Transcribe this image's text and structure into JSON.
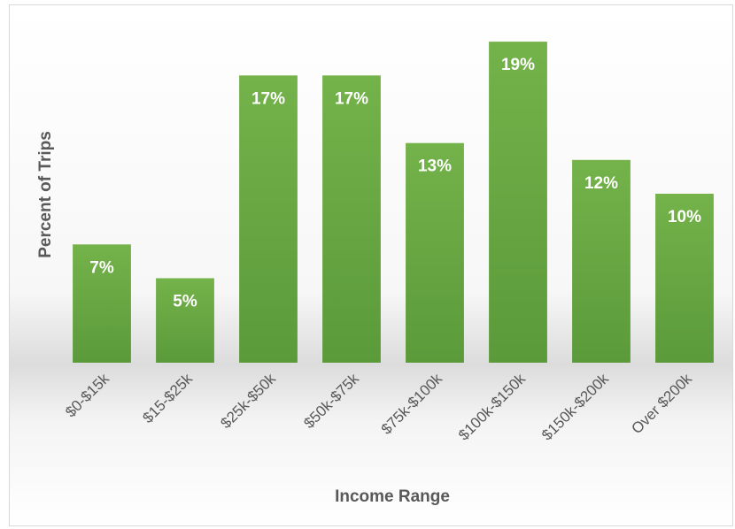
{
  "chart_data": {
    "type": "bar",
    "x_label": "Income Range",
    "y_label": "Percent of Trips",
    "categories": [
      "$0-$15k",
      "$15-$25k",
      "$25k-$50k",
      "$50k-$75k",
      "$75k-$100k",
      "$100k-$150k",
      "$150k-$200k",
      "Over $200k"
    ],
    "values": [
      7,
      5,
      17,
      17,
      13,
      19,
      12,
      10
    ],
    "value_labels": [
      "7%",
      "5%",
      "17%",
      "17%",
      "13%",
      "19%",
      "12%",
      "10%"
    ],
    "color": "#6aa84f",
    "ylim": [
      0,
      20
    ]
  }
}
